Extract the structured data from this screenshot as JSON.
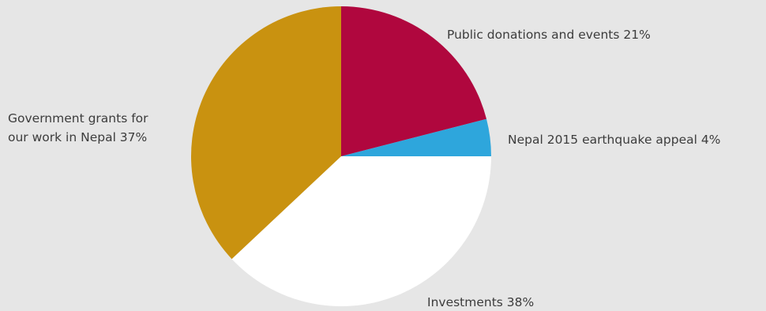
{
  "chart_data": {
    "type": "pie",
    "title": "",
    "slices": [
      {
        "label": "Public donations and events 21%",
        "value": 21,
        "color": "#b0073e"
      },
      {
        "label": "Nepal 2015 earthquake appeal 4%",
        "value": 4,
        "color": "#2ea6dc"
      },
      {
        "label": "Investments 38%",
        "value": 38,
        "color": "#ffffff"
      },
      {
        "label_lines": [
          "Government grants for",
          "our work in Nepal 37%"
        ],
        "value": 37,
        "color": "#c99210"
      }
    ]
  }
}
